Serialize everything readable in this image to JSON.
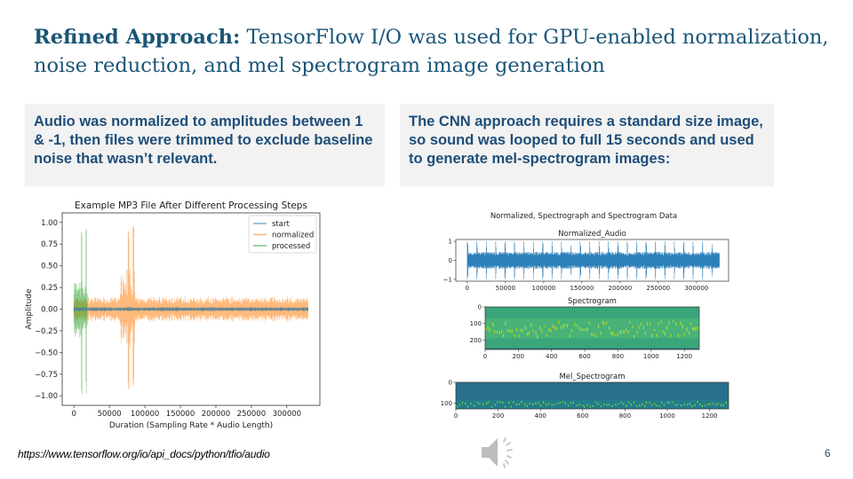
{
  "title": {
    "bold": "Refined Approach:",
    "rest": " TensorFlow I/O was used for GPU-enabled normalization, noise reduction, and mel spectrogram image generation"
  },
  "boxes": {
    "left": "Audio was normalized to amplitudes between 1 & -1, then files were trimmed to exclude baseline noise that wasn’t relevant.",
    "right": "The CNN approach requires a standard size image, so sound was looped to full 15 seconds and used to generate mel-spectrogram images:"
  },
  "footer": {
    "url": "https://www.tensorflow.org/io/api_docs/python/tfio/audio",
    "page_number": "6",
    "audio_icon": "speaker-icon"
  },
  "chart_data": [
    {
      "type": "line",
      "title": "Example MP3 File After Different Processing Steps",
      "xlabel": "Duration (Sampling Rate * Audio Length)",
      "ylabel": "Amplitude",
      "xlim": [
        -16500,
        346500
      ],
      "ylim": [
        -1.11,
        1.11
      ],
      "xticks": [
        0,
        50000,
        100000,
        150000,
        200000,
        250000,
        300000
      ],
      "yticks": [
        1.0,
        0.75,
        0.5,
        0.25,
        0.0,
        -0.25,
        -0.5,
        -0.75,
        -1.0
      ],
      "ytick_labels": [
        "1.00",
        "0.75",
        "0.50",
        "0.25",
        "0.00",
        "−0.25",
        "−0.50",
        "−0.75",
        "−1.00"
      ],
      "legend_position": "top-right",
      "series": [
        {
          "name": "start",
          "color": "#1f77b4",
          "x_range": [
            0,
            330000
          ],
          "amplitude_max": 0.03
        },
        {
          "name": "normalized",
          "color": "#ff7f0e",
          "x_range": [
            0,
            330000
          ],
          "amplitude_max": 1.0,
          "peak_x": [
            77000,
            84000
          ]
        },
        {
          "name": "processed",
          "color": "#2ca02c",
          "x_range": [
            0,
            19000
          ],
          "amplitude_max": 1.0,
          "peak_x": [
            11000,
            17000
          ]
        }
      ]
    },
    {
      "type": "figure",
      "suptitle": "Normalized, Spectrograph and Spectrogram Data",
      "panels": [
        {
          "title": "Normalized_Audio",
          "type": "line",
          "color": "#1f77b4",
          "xlim": [
            -15000,
            342000
          ],
          "ylim": [
            -1.1,
            1.1
          ],
          "xticks": [
            0,
            50000,
            100000,
            150000,
            200000,
            250000,
            300000
          ],
          "yticks": [
            1,
            0,
            -1
          ],
          "ytick_labels": [
            "1",
            "0",
            "−1"
          ],
          "x_range": [
            0,
            330000
          ]
        },
        {
          "title": "Spectrogram",
          "type": "heatmap",
          "xlim": [
            0,
            1290
          ],
          "ylim": [
            0,
            257
          ],
          "xticks": [
            0,
            200,
            400,
            600,
            800,
            1000,
            1200
          ],
          "yticks": [
            0,
            100,
            200
          ]
        },
        {
          "title": "Mel_Spectrogram",
          "type": "heatmap",
          "xlim": [
            0,
            1290
          ],
          "ylim": [
            0,
            128
          ],
          "xticks": [
            0,
            200,
            400,
            600,
            800,
            1000,
            1200
          ],
          "yticks": [
            0,
            100
          ]
        }
      ]
    }
  ]
}
